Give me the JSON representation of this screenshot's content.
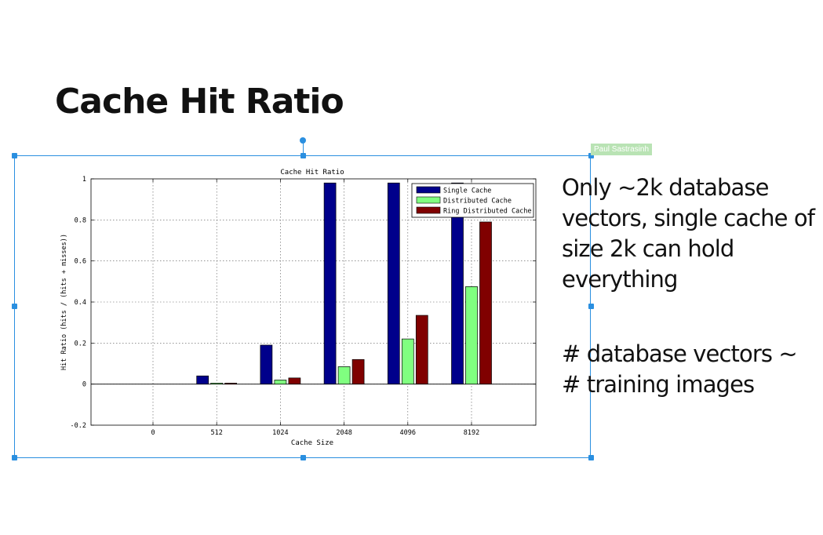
{
  "slide": {
    "title": "Cache Hit Ratio",
    "notes": [
      "Only ~2k database vectors, single cache of size 2k can hold everything",
      "# database vectors ~ # training images"
    ],
    "user_tag": "Paul Sastrasinh",
    "selection_color": "#2a8fe0"
  },
  "chart_data": {
    "type": "bar",
    "title": "Cache Hit Ratio",
    "xlabel": "Cache Size",
    "ylabel": "Hit Ratio (hits / (hits + misses))",
    "categories": [
      "0",
      "512",
      "1024",
      "2048",
      "4096",
      "8192"
    ],
    "series": [
      {
        "name": "Single Cache",
        "color": "#00008b",
        "values": [
          0,
          0.04,
          0.19,
          0.98,
          0.98,
          0.98
        ]
      },
      {
        "name": "Distributed Cache",
        "color": "#80ff80",
        "values": [
          0,
          0.005,
          0.02,
          0.085,
          0.22,
          0.475
        ]
      },
      {
        "name": "Ring Distributed Cache",
        "color": "#800000",
        "values": [
          0,
          0.005,
          0.03,
          0.12,
          0.335,
          0.79
        ]
      }
    ],
    "ylim": [
      -0.2,
      1
    ],
    "yticks": [
      -0.2,
      0,
      0.2,
      0.4,
      0.6,
      0.8,
      1
    ],
    "yticklabels": [
      "-0.2",
      "0",
      "0.2",
      "0.4",
      "0.6",
      "0.8",
      "1"
    ],
    "grid": true,
    "legend_position": "top-right"
  }
}
